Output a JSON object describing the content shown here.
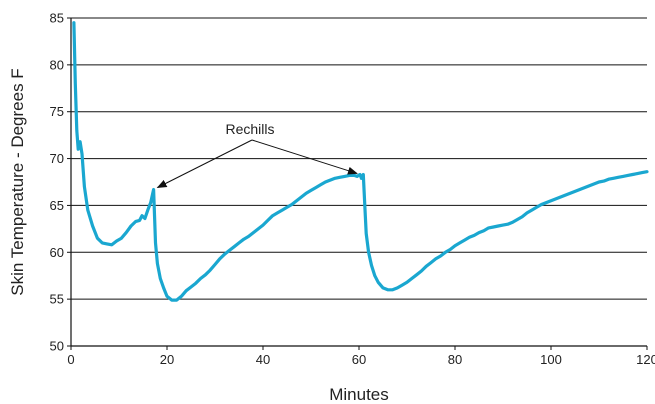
{
  "chart_data": {
    "type": "line",
    "title": "",
    "xlabel": "Minutes",
    "ylabel": "Skin Temperature - Degrees F",
    "xlim": [
      0,
      120
    ],
    "ylim": [
      50,
      85
    ],
    "xticks": [
      0,
      20,
      40,
      60,
      80,
      100,
      120
    ],
    "yticks": [
      50,
      55,
      60,
      65,
      70,
      75,
      80,
      85
    ],
    "grid": "horizontal",
    "legend": "none",
    "series": [
      {
        "color": "#1aa7d0",
        "points": [
          [
            0.6,
            84.5
          ],
          [
            0.9,
            78
          ],
          [
            1.2,
            73
          ],
          [
            1.5,
            71
          ],
          [
            1.9,
            71.8
          ],
          [
            2.3,
            70.5
          ],
          [
            2.8,
            67
          ],
          [
            3.5,
            64.5
          ],
          [
            4.5,
            62.8
          ],
          [
            5.5,
            61.5
          ],
          [
            6.5,
            61.0
          ],
          [
            7.5,
            60.9
          ],
          [
            8.5,
            60.8
          ],
          [
            9.5,
            61.2
          ],
          [
            10.5,
            61.5
          ],
          [
            11.5,
            62.1
          ],
          [
            12.5,
            62.8
          ],
          [
            13.5,
            63.3
          ],
          [
            14.3,
            63.4
          ],
          [
            14.8,
            63.9
          ],
          [
            15.4,
            63.6
          ],
          [
            16.0,
            64.5
          ],
          [
            16.6,
            65.3
          ],
          [
            17.2,
            66.7
          ],
          [
            17.4,
            64
          ],
          [
            17.6,
            61
          ],
          [
            18.0,
            58.8
          ],
          [
            18.6,
            57.2
          ],
          [
            19.3,
            56.2
          ],
          [
            20.0,
            55.3
          ],
          [
            21.0,
            54.9
          ],
          [
            22.0,
            54.9
          ],
          [
            23.0,
            55.3
          ],
          [
            24.0,
            55.9
          ],
          [
            25.0,
            56.3
          ],
          [
            26.0,
            56.7
          ],
          [
            27.0,
            57.2
          ],
          [
            28.0,
            57.6
          ],
          [
            29.0,
            58.1
          ],
          [
            30.0,
            58.7
          ],
          [
            31.0,
            59.3
          ],
          [
            32.0,
            59.8
          ],
          [
            33.0,
            60.2
          ],
          [
            34.0,
            60.6
          ],
          [
            35.0,
            61.0
          ],
          [
            36.0,
            61.4
          ],
          [
            37.0,
            61.7
          ],
          [
            38.0,
            62.1
          ],
          [
            39.0,
            62.5
          ],
          [
            40.0,
            62.9
          ],
          [
            41.0,
            63.4
          ],
          [
            42.0,
            63.9
          ],
          [
            43.0,
            64.2
          ],
          [
            44.0,
            64.5
          ],
          [
            45.0,
            64.8
          ],
          [
            46.0,
            65.1
          ],
          [
            47.0,
            65.5
          ],
          [
            48.0,
            65.9
          ],
          [
            49.0,
            66.3
          ],
          [
            50.0,
            66.6
          ],
          [
            51.0,
            66.9
          ],
          [
            52.0,
            67.2
          ],
          [
            53.0,
            67.5
          ],
          [
            54.0,
            67.7
          ],
          [
            55.0,
            67.9
          ],
          [
            56.0,
            68.0
          ],
          [
            57.0,
            68.1
          ],
          [
            58.0,
            68.2
          ],
          [
            59.0,
            68.2
          ],
          [
            59.6,
            68.1
          ],
          [
            60.2,
            68.3
          ],
          [
            60.5,
            67.9
          ],
          [
            60.9,
            68.3
          ],
          [
            61.2,
            65
          ],
          [
            61.5,
            62
          ],
          [
            62.0,
            60
          ],
          [
            62.6,
            58.6
          ],
          [
            63.3,
            57.5
          ],
          [
            64.0,
            56.8
          ],
          [
            65.0,
            56.2
          ],
          [
            66.0,
            56.0
          ],
          [
            67.0,
            56.0
          ],
          [
            68.0,
            56.2
          ],
          [
            69.0,
            56.5
          ],
          [
            70.0,
            56.8
          ],
          [
            71.0,
            57.2
          ],
          [
            72.0,
            57.6
          ],
          [
            73.0,
            58.0
          ],
          [
            74.0,
            58.5
          ],
          [
            75.0,
            58.9
          ],
          [
            76.0,
            59.3
          ],
          [
            77.0,
            59.6
          ],
          [
            78.0,
            60.0
          ],
          [
            79.0,
            60.3
          ],
          [
            80.0,
            60.7
          ],
          [
            81.0,
            61.0
          ],
          [
            82.0,
            61.3
          ],
          [
            83.0,
            61.6
          ],
          [
            84.0,
            61.8
          ],
          [
            85.0,
            62.1
          ],
          [
            86.0,
            62.3
          ],
          [
            87.0,
            62.6
          ],
          [
            88.0,
            62.7
          ],
          [
            89.0,
            62.8
          ],
          [
            90.0,
            62.9
          ],
          [
            91.0,
            63.0
          ],
          [
            92.0,
            63.2
          ],
          [
            93.0,
            63.5
          ],
          [
            94.0,
            63.8
          ],
          [
            95.0,
            64.2
          ],
          [
            96.0,
            64.5
          ],
          [
            97.0,
            64.8
          ],
          [
            98.0,
            65.1
          ],
          [
            99.0,
            65.3
          ],
          [
            100.0,
            65.5
          ],
          [
            101.0,
            65.7
          ],
          [
            102.0,
            65.9
          ],
          [
            103.0,
            66.1
          ],
          [
            104.0,
            66.3
          ],
          [
            105.0,
            66.5
          ],
          [
            106.0,
            66.7
          ],
          [
            107.0,
            66.9
          ],
          [
            108.0,
            67.1
          ],
          [
            109.0,
            67.3
          ],
          [
            110.0,
            67.5
          ],
          [
            111.0,
            67.6
          ],
          [
            112.0,
            67.8
          ],
          [
            113.0,
            67.9
          ],
          [
            114.0,
            68.0
          ],
          [
            115.0,
            68.1
          ],
          [
            116.0,
            68.2
          ],
          [
            117.0,
            68.3
          ],
          [
            118.0,
            68.4
          ],
          [
            119.0,
            68.5
          ],
          [
            120.0,
            68.6
          ]
        ]
      }
    ],
    "annotations": [
      {
        "text": "Rechills",
        "arrows_to": [
          [
            17.2,
            66.7
          ],
          [
            60.2,
            68.2
          ]
        ]
      }
    ]
  }
}
